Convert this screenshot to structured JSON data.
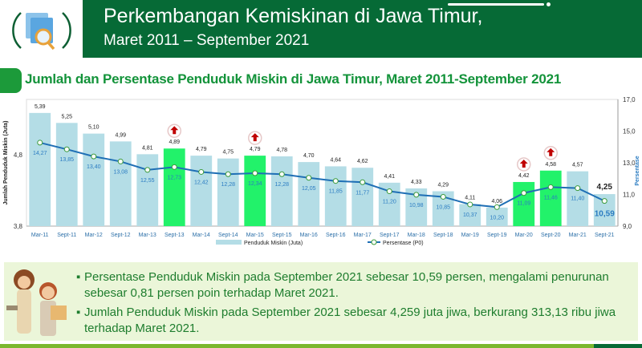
{
  "header": {
    "title": "Perkembangan Kemiskinan di Jawa Timur,",
    "subtitle": "Maret 2011 – September 2021",
    "icon": "magnifier-document-icon"
  },
  "section_title": "Jumlah dan Persentase Penduduk Miskin di Jawa Timur, Maret 2011-September 2021",
  "chart_data": {
    "type": "bar+line",
    "categories": [
      "Mar-11",
      "Sept-11",
      "Mar-12",
      "Sept-12",
      "Mar-13",
      "Sept-13",
      "Mar-14",
      "Sept-14",
      "Mar-15",
      "Sept-15",
      "Mar-16",
      "Sept-16",
      "Mar-17",
      "Sept-17",
      "Mar-18",
      "Sept-18",
      "Mar-19",
      "Sept-19",
      "Mar-20",
      "Sept-20",
      "Mar-21",
      "Sept-21"
    ],
    "series": [
      {
        "name": "Penduduk Miskin (Juta)",
        "type": "bar",
        "axis": "left",
        "values": [
          5.39,
          5.25,
          5.1,
          4.99,
          4.81,
          4.89,
          4.79,
          4.75,
          4.79,
          4.78,
          4.7,
          4.64,
          4.62,
          4.41,
          4.33,
          4.29,
          4.11,
          4.06,
          4.42,
          4.58,
          4.57,
          4.25
        ],
        "labels": [
          "5,39",
          "5,25",
          "5,10",
          "4,99",
          "4,81",
          "4,89",
          "4,79",
          "4,75",
          "4,79",
          "4,78",
          "4,70",
          "4,64",
          "4,62",
          "4,41",
          "4,33",
          "4,29",
          "4,11",
          "4,06",
          "4,42",
          "4,58",
          "4,57",
          "4,25"
        ]
      },
      {
        "name": "Persentase (P0)",
        "type": "line",
        "axis": "right",
        "values": [
          14.27,
          13.85,
          13.4,
          13.08,
          12.55,
          12.73,
          12.42,
          12.28,
          12.34,
          12.28,
          12.05,
          11.85,
          11.77,
          11.2,
          10.98,
          10.85,
          10.37,
          10.2,
          11.09,
          11.46,
          11.4,
          10.59
        ],
        "labels": [
          "14,27",
          "13,85",
          "13,40",
          "13,08",
          "12,55",
          "12,73",
          "12,42",
          "12,28",
          "12,34",
          "12,28",
          "12,05",
          "11,85",
          "11,77",
          "11,20",
          "10,98",
          "10,85",
          "10,37",
          "10,20",
          "11,09",
          "11,46",
          "11,40",
          "10,59"
        ]
      }
    ],
    "highlighted_increase": [
      "Sept-13",
      "Mar-15",
      "Mar-20",
      "Sept-20"
    ],
    "ylabel_left": "Jumlah Penduduk Miskin (Juta)",
    "ylabel_right": "Persentase",
    "left_ticks": [
      "3,8",
      "4,8"
    ],
    "left_ylim": [
      3.8,
      5.58
    ],
    "right_ticks": [
      "9,0",
      "11,0",
      "13,0",
      "15,0",
      "17,0"
    ],
    "right_ylim": [
      9.0,
      17.0
    ],
    "legend_position": "bottom",
    "colors": {
      "bar": "#b4dde6",
      "bar_highlight": "#22f26a",
      "line": "#1f6fb5",
      "line_label": "#2b7cc2",
      "arrow": "#c00000"
    }
  },
  "notes": [
    "Persentase Penduduk Miskin pada September 2021 sebesar 10,59 persen, mengalami penurunan sebesar 0,81 persen poin terhadap Maret 2021.",
    "Jumlah Penduduk Miskin pada September 2021 sebesar 4,259 juta jiwa, berkurang 313,13 ribu jiwa terhadap Maret 2021."
  ],
  "bullet": "▪"
}
